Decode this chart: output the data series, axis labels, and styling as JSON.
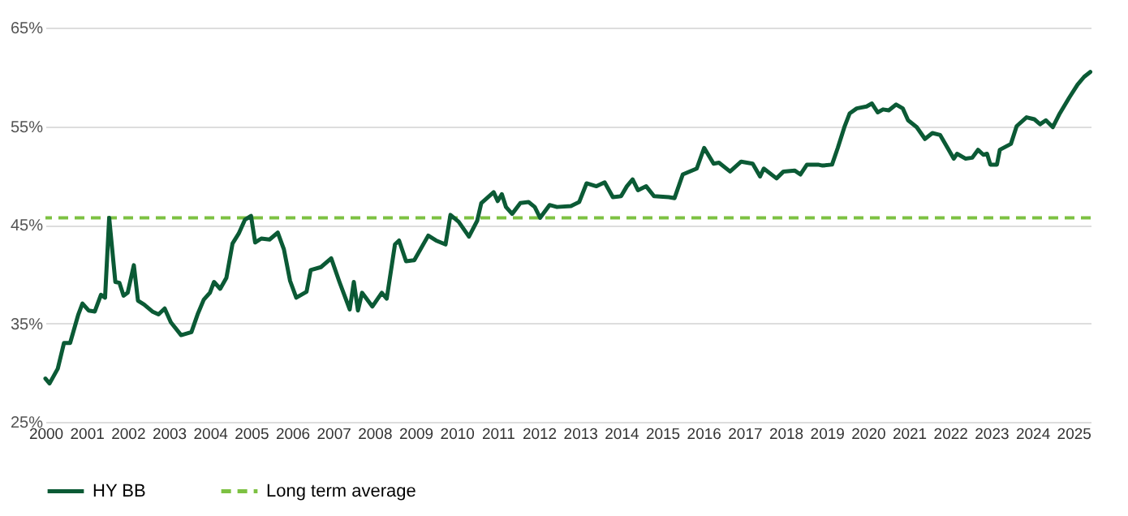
{
  "chart_data": {
    "type": "line",
    "x": [
      2000.0,
      2000.1,
      2000.3,
      2000.45,
      2000.6,
      2000.8,
      2000.9,
      2001.05,
      2001.2,
      2001.35,
      2001.45,
      2001.55,
      2001.7,
      2001.8,
      2001.9,
      2002.0,
      2002.15,
      2002.25,
      2002.4,
      2002.6,
      2002.75,
      2002.9,
      2003.05,
      2003.3,
      2003.55,
      2003.7,
      2003.85,
      2004.0,
      2004.1,
      2004.25,
      2004.4,
      2004.55,
      2004.7,
      2004.85,
      2005.0,
      2005.1,
      2005.25,
      2005.45,
      2005.65,
      2005.8,
      2005.95,
      2006.1,
      2006.35,
      2006.45,
      2006.7,
      2006.95,
      2007.15,
      2007.4,
      2007.5,
      2007.6,
      2007.7,
      2007.95,
      2008.18,
      2008.3,
      2008.5,
      2008.6,
      2008.77,
      2008.97,
      2009.31,
      2009.5,
      2009.73,
      2009.85,
      2010.05,
      2010.3,
      2010.5,
      2010.6,
      2010.9,
      2011.0,
      2011.1,
      2011.2,
      2011.35,
      2011.55,
      2011.75,
      2011.9,
      2012.03,
      2012.26,
      2012.44,
      2012.78,
      2012.98,
      2013.16,
      2013.4,
      2013.6,
      2013.8,
      2014.0,
      2014.14,
      2014.28,
      2014.41,
      2014.61,
      2014.8,
      2015.16,
      2015.3,
      2015.5,
      2015.84,
      2016.02,
      2016.25,
      2016.38,
      2016.65,
      2016.92,
      2017.2,
      2017.38,
      2017.47,
      2017.78,
      2017.95,
      2018.22,
      2018.36,
      2018.52,
      2018.79,
      2018.9,
      2019.13,
      2019.27,
      2019.43,
      2019.56,
      2019.73,
      2019.97,
      2020.1,
      2020.24,
      2020.37,
      2020.51,
      2020.69,
      2020.85,
      2020.98,
      2021.19,
      2021.39,
      2021.57,
      2021.76,
      2021.94,
      2022.09,
      2022.17,
      2022.38,
      2022.54,
      2022.68,
      2022.81,
      2022.9,
      2022.98,
      2023.14,
      2023.21,
      2023.48,
      2023.62,
      2023.86,
      2024.05,
      2024.19,
      2024.33,
      2024.5,
      2024.67,
      2024.9,
      2025.1,
      2025.26,
      2025.41
    ],
    "series": [
      {
        "name": "HY BB",
        "color": "#0b5a35",
        "values": [
          29.4,
          28.9,
          30.4,
          33.0,
          33.0,
          35.9,
          37.0,
          36.3,
          36.2,
          37.9,
          37.6,
          45.7,
          39.2,
          39.1,
          37.8,
          38.1,
          40.9,
          37.3,
          36.9,
          36.2,
          35.9,
          36.5,
          35.1,
          33.8,
          34.1,
          35.9,
          37.4,
          38.1,
          39.2,
          38.5,
          39.6,
          43.1,
          44.1,
          45.5,
          45.9,
          43.2,
          43.6,
          43.5,
          44.2,
          42.5,
          39.3,
          37.6,
          38.2,
          40.4,
          40.7,
          41.6,
          39.2,
          36.4,
          39.2,
          36.3,
          38.1,
          36.7,
          38.1,
          37.5,
          43.0,
          43.4,
          41.3,
          41.4,
          43.9,
          43.4,
          43.0,
          46.0,
          45.3,
          43.8,
          45.4,
          47.2,
          48.3,
          47.4,
          48.1,
          46.8,
          46.1,
          47.2,
          47.3,
          46.8,
          45.7,
          47.0,
          46.8,
          46.9,
          47.3,
          49.2,
          48.9,
          49.3,
          47.8,
          47.9,
          48.9,
          49.6,
          48.5,
          48.9,
          47.9,
          47.8,
          47.7,
          50.1,
          50.7,
          52.8,
          51.2,
          51.3,
          50.4,
          51.4,
          51.2,
          49.9,
          50.7,
          49.7,
          50.4,
          50.5,
          50.1,
          51.1,
          51.1,
          51.0,
          51.1,
          52.8,
          54.9,
          56.3,
          56.8,
          57.0,
          57.3,
          56.4,
          56.7,
          56.6,
          57.2,
          56.8,
          55.6,
          54.9,
          53.7,
          54.3,
          54.1,
          52.8,
          51.7,
          52.2,
          51.7,
          51.8,
          52.6,
          52.1,
          52.2,
          51.1,
          51.1,
          52.6,
          53.2,
          55.0,
          55.9,
          55.7,
          55.2,
          55.6,
          54.9,
          56.3,
          57.9,
          59.2,
          60.0,
          60.5
        ]
      }
    ],
    "ref_lines": [
      {
        "axis": "y",
        "value": 45.7,
        "label": "Long term average",
        "color": "#7dc142",
        "line_style": "dashed"
      }
    ],
    "xlim": [
      2000,
      2025.42
    ],
    "xticks": [
      2000,
      2001,
      2002,
      2003,
      2004,
      2005,
      2006,
      2007,
      2008,
      2009,
      2010,
      2011,
      2012,
      2013,
      2014,
      2015,
      2016,
      2017,
      2018,
      2019,
      2020,
      2021,
      2022,
      2023,
      2024,
      2025
    ],
    "ylim": [
      25,
      65
    ],
    "yticks": [
      {
        "value": 25,
        "label": "25%"
      },
      {
        "value": 35,
        "label": "35%"
      },
      {
        "value": 45,
        "label": "45%"
      },
      {
        "value": 55,
        "label": "55%"
      },
      {
        "value": 65,
        "label": "65%"
      }
    ],
    "grid": "y",
    "legend": "bottom",
    "line_style": "solid"
  }
}
